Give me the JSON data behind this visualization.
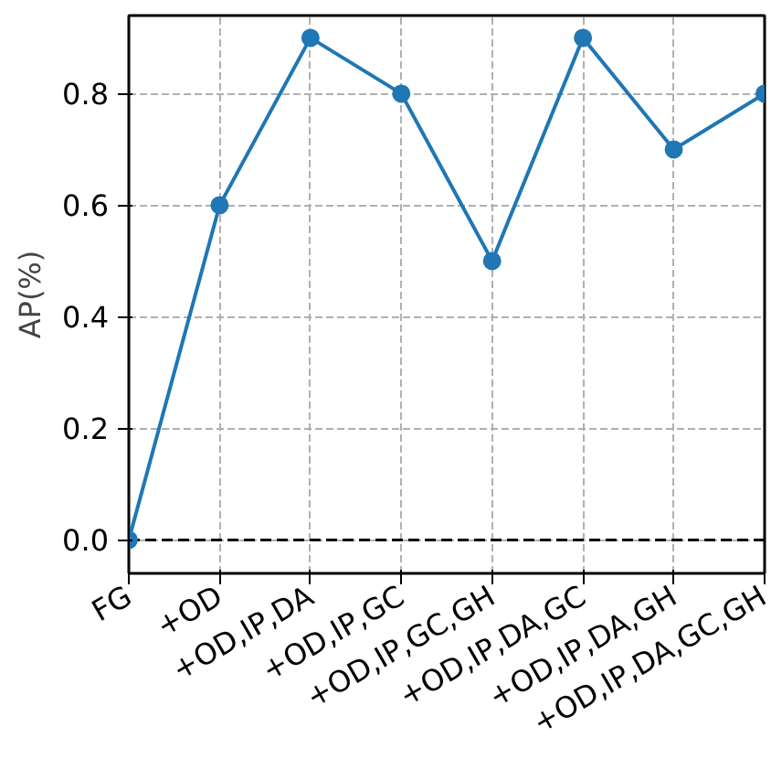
{
  "chart_data": {
    "type": "line",
    "ylabel": "AP(%)",
    "categories": [
      "FG",
      "+OD",
      "+OD,IP,DA",
      "+OD,IP,GC",
      "+OD,IP,GC,GH",
      "+OD,IP,DA,GC",
      "+OD,IP,DA,GH",
      "+OD,IP,DA,GC,GH"
    ],
    "series": [
      {
        "color": "#1f77b4",
        "values": [
          0.0,
          0.6,
          0.9,
          0.8,
          0.5,
          0.9,
          0.7,
          0.8
        ]
      }
    ],
    "ylim": [
      -0.06,
      0.94
    ],
    "yticks": [
      {
        "value": 0,
        "label": "0.0"
      },
      {
        "value": 0.2,
        "label": "0.2"
      },
      {
        "value": 0.4,
        "label": "0.4"
      },
      {
        "value": 0.6,
        "label": "0.6"
      },
      {
        "value": 0.8,
        "label": "0.8"
      }
    ],
    "grid": true,
    "marker": "circle",
    "line_style": "solid",
    "ref_lines": [
      {
        "axis": "y",
        "value": 0,
        "color": "#000000",
        "line_style": "dashed"
      }
    ]
  }
}
